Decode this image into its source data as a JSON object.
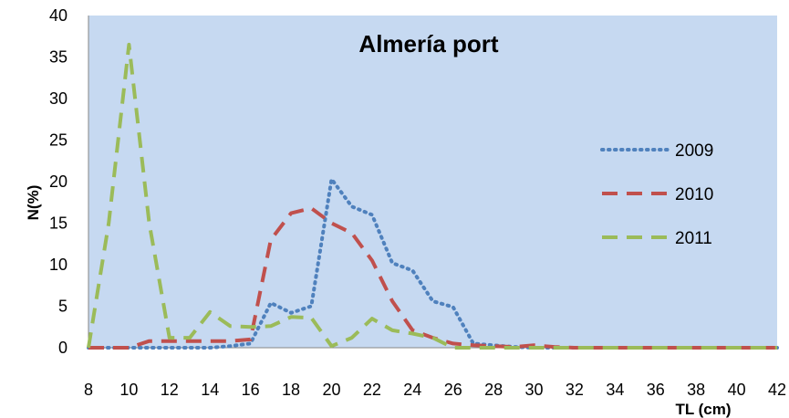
{
  "chart_data": {
    "type": "line",
    "title": "Almería port",
    "xlabel": "TL (cm)",
    "ylabel": "N(%)",
    "xlim": [
      8,
      42
    ],
    "ylim": [
      0,
      40
    ],
    "x_ticks": [
      8,
      10,
      12,
      14,
      16,
      18,
      20,
      22,
      24,
      26,
      28,
      30,
      32,
      34,
      36,
      38,
      40,
      42
    ],
    "y_ticks": [
      0,
      5,
      10,
      15,
      20,
      25,
      30,
      35,
      40
    ],
    "grid": false,
    "legend_position": "right",
    "plot_background": "#C6D9F1",
    "series": [
      {
        "name": "2009",
        "color": "#4F81BD",
        "dash": "dotted",
        "x": [
          8,
          9,
          10,
          11,
          12,
          13,
          14,
          15,
          16,
          17,
          18,
          19,
          20,
          21,
          22,
          23,
          24,
          25,
          26,
          27,
          28,
          29,
          30,
          31,
          32,
          33,
          34,
          35,
          36,
          37,
          38,
          39,
          40,
          41,
          42
        ],
        "values": [
          0,
          0,
          0,
          0,
          0,
          0,
          0,
          0.2,
          0.5,
          5.4,
          4.2,
          5.0,
          20.3,
          17.0,
          16.0,
          10.2,
          9.3,
          5.6,
          4.9,
          0.5,
          0.3,
          0.1,
          0,
          0,
          0,
          0,
          0,
          0,
          0,
          0,
          0,
          0,
          0,
          0,
          0
        ]
      },
      {
        "name": "2010",
        "color": "#C0504D",
        "dash": "dashed",
        "x": [
          8,
          9,
          10,
          11,
          12,
          13,
          14,
          15,
          16,
          17,
          18,
          19,
          20,
          21,
          22,
          23,
          24,
          25,
          26,
          27,
          28,
          29,
          30,
          31,
          32,
          33,
          34,
          35,
          36,
          37,
          38,
          39,
          40,
          41,
          42
        ],
        "values": [
          0,
          0,
          0,
          0.8,
          0.8,
          0.8,
          0.8,
          0.8,
          1.0,
          13.0,
          16.2,
          16.8,
          15.0,
          13.8,
          10.5,
          5.6,
          2.1,
          1.2,
          0.5,
          0.3,
          0.2,
          0.1,
          0.3,
          0.1,
          0,
          0,
          0,
          0,
          0,
          0,
          0,
          0,
          0,
          0,
          0
        ]
      },
      {
        "name": "2011",
        "color": "#9BBB59",
        "dash": "dashed",
        "x": [
          8,
          9,
          10,
          11,
          12,
          13,
          14,
          15,
          16,
          17,
          18,
          19,
          20,
          21,
          22,
          23,
          24,
          25,
          26,
          27,
          28,
          29,
          30,
          31,
          32,
          33,
          34,
          35,
          36,
          37,
          38,
          39,
          40,
          41,
          42
        ],
        "values": [
          0,
          15.0,
          36.5,
          15.0,
          1.2,
          1.2,
          4.3,
          2.6,
          2.5,
          2.6,
          3.7,
          3.6,
          0.2,
          1.2,
          3.5,
          2.1,
          1.7,
          1.2,
          0,
          0,
          0,
          0,
          0,
          0,
          0,
          0,
          0,
          0,
          0,
          0,
          0,
          0,
          0,
          0,
          0
        ]
      }
    ]
  }
}
